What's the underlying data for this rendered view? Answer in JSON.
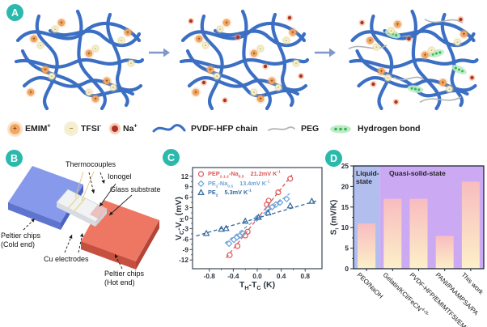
{
  "panels": {
    "a": "A",
    "b": "B",
    "c": "C",
    "d": "D"
  },
  "colors": {
    "panel_badge": "#2bb9ac",
    "chain_blue": "#3b6fc4",
    "peg_gray": "#b3b3b3",
    "hbond_green": "#2fb850",
    "hbond_glow": "#bfeac6",
    "flow_arrow": "#8097c9",
    "emim_orange": "#f2a863",
    "tfsi_cream": "#f6eec9",
    "na_red": "#b22f2f",
    "cold_chip_blue": "#8799ea",
    "hot_chip_red": "#ee7763"
  },
  "legend": {
    "items": [
      {
        "name": "emim",
        "label_html": "EMIM<sup>+</sup>"
      },
      {
        "name": "tfsi",
        "label_html": "TFSI<sup>-</sup>"
      },
      {
        "name": "na",
        "label_html": "Na<sup>+</sup>"
      },
      {
        "name": "pvdf",
        "label_html": "PVDF-HFP chain"
      },
      {
        "name": "peg",
        "label_html": "PEG"
      },
      {
        "name": "hbond",
        "label_html": "Hydrogen bond"
      }
    ]
  },
  "panel_b": {
    "labels": {
      "thermocouples": "Thermocouples",
      "ionogel": "Ionogel",
      "glass_substrate": "Glass substrate",
      "cu_electrodes": "Cu electrodes",
      "peltier_cold_1": "Peltier chips",
      "peltier_cold_2": "(Cold end)",
      "peltier_hot_1": "Peltier chips",
      "peltier_hot_2": "(Hot end)"
    }
  },
  "chart_data": [
    {
      "id": "panel-c-scatter",
      "type": "scatter",
      "xlabel_html": "T<sub>H</sub>-T<sub>C</sub> (K)",
      "ylabel_html": "V<sub>C</sub>-V<sub>H</sub> (mV)",
      "xlim": [
        -1.08,
        1.08
      ],
      "ylim": [
        -14.5,
        14.5
      ],
      "xtick_vals": [
        -0.8,
        -0.4,
        0.0,
        0.4,
        0.8
      ],
      "xtick_labels": [
        "-0.8",
        "-0.4",
        "0.0",
        "0.4",
        "0.8"
      ],
      "ytick_vals": [
        -12,
        -9,
        -6,
        -3,
        0,
        3,
        6,
        9,
        12
      ],
      "ytick_labels": [
        "-12",
        "-9",
        "-6",
        "-3",
        "0",
        "3",
        "6",
        "9",
        "12"
      ],
      "grid": false,
      "legend_position": "top-left",
      "series": [
        {
          "name_html": "PEP<sub>2-1.2</sub>-Na<sub>0.5</sub>",
          "slope_html": "21.2mV K<sup>-1</sup>",
          "slope_mV_per_K": 21.2,
          "color": "#e05656",
          "marker": "circle",
          "points": [
            [
              -0.46,
              -10.6
            ],
            [
              -0.33,
              -8.0
            ],
            [
              -0.2,
              -5.0
            ],
            [
              -0.16,
              -3.9
            ],
            [
              0.16,
              3.9
            ],
            [
              0.19,
              5.0
            ],
            [
              0.35,
              7.4
            ],
            [
              0.55,
              11.3
            ]
          ],
          "fit_line": [
            [
              -0.52,
              -11.4
            ],
            [
              0.58,
              12.4
            ]
          ]
        },
        {
          "name_html": "PE<sub>2</sub>-Na<sub>0.5</sub>",
          "slope_html": "13.4mV K<sup>-1</sup>",
          "slope_mV_per_K": 13.4,
          "color": "#6ba3d6",
          "marker": "diamond",
          "points": [
            [
              -0.47,
              -7.3
            ],
            [
              -0.39,
              -6.2
            ],
            [
              -0.34,
              -5.5
            ],
            [
              -0.29,
              -5.0
            ],
            [
              -0.24,
              -4.4
            ],
            [
              -0.01,
              -0.1
            ],
            [
              0.18,
              2.6
            ],
            [
              0.25,
              3.2
            ],
            [
              0.31,
              3.9
            ],
            [
              0.38,
              4.5
            ],
            [
              0.49,
              5.5
            ]
          ],
          "fit_line": [
            [
              -0.54,
              -7.2
            ],
            [
              0.54,
              7.0
            ]
          ]
        },
        {
          "name_html": "PE<sub>2</sub>",
          "slope_html": "5.3mV K<sup>-1</sup>",
          "slope_mV_per_K": 5.3,
          "color": "#33689e",
          "marker": "triangle",
          "points": [
            [
              -0.85,
              -4.4
            ],
            [
              -0.6,
              -3.2
            ],
            [
              -0.52,
              -3.0
            ],
            [
              -0.2,
              -0.9
            ],
            [
              0.02,
              0.2
            ],
            [
              0.18,
              1.5
            ],
            [
              0.55,
              3.5
            ],
            [
              0.91,
              4.8
            ]
          ],
          "fit_line": [
            [
              -1.02,
              -5.1
            ],
            [
              1.02,
              5.1
            ]
          ]
        }
      ]
    },
    {
      "id": "panel-d-bars",
      "type": "bar",
      "ylabel_html": "S<sub>i</sub> (mV/K)",
      "ylim": [
        0,
        25
      ],
      "ytick_vals": [
        0,
        5,
        10,
        15,
        20,
        25
      ],
      "ytick_labels": [
        "0",
        "5",
        "10",
        "15",
        "20",
        "25"
      ],
      "categories_html": [
        "PEO/NaOH",
        "Gelatin/KCl/FeCN<sup>4-/3-</sup>",
        "PVDF-HFP/EMIMTFSI/EMIMCl",
        "PANI/PAAMPSA/PA",
        "This work"
      ],
      "values": [
        11,
        17,
        17,
        8,
        21.2
      ],
      "zones": [
        {
          "label": "Liquid-state",
          "color": "#b2bfee",
          "category_span": [
            0,
            0
          ]
        },
        {
          "label": "Quasi-solid-state",
          "color": "#cbaaf3",
          "category_span": [
            1,
            4
          ]
        }
      ],
      "bar_gradient": [
        "#f8bcc0",
        "#fcf0c8"
      ]
    }
  ]
}
